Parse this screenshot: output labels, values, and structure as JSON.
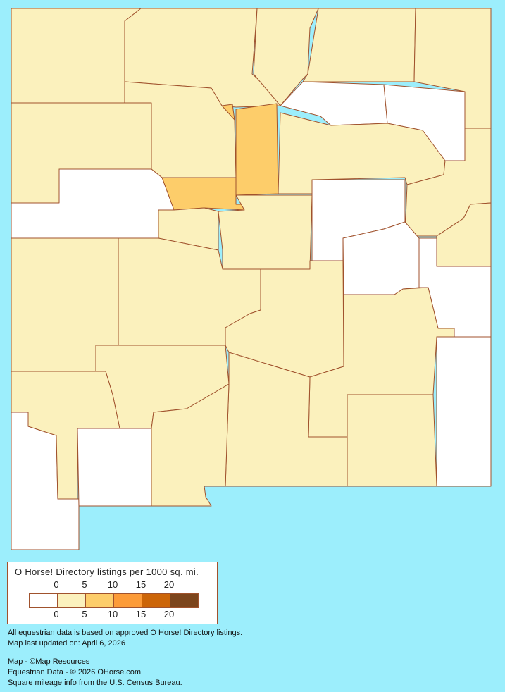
{
  "legend": {
    "title": "O Horse! Directory listings per 1000 sq. mi.",
    "ticks_top": [
      "0",
      "5",
      "10",
      "15",
      "20"
    ],
    "ticks_bottom": [
      "0",
      "5",
      "10",
      "15",
      "20"
    ],
    "colors": [
      "#FFFFFF",
      "#FBF1BD",
      "#FDCD6A",
      "#FC9B38",
      "#CC6508",
      "#7C451C"
    ]
  },
  "map": {
    "background": "#9CEEFC",
    "county_fill_levels": [
      1,
      1,
      1,
      2,
      2,
      2,
      1,
      1,
      1,
      0,
      0,
      1,
      1,
      1,
      0,
      1,
      1,
      0,
      0,
      1,
      1,
      1,
      1,
      1,
      0,
      0,
      1,
      1,
      1,
      0
    ]
  },
  "notes": {
    "data_basis": "All equestrian data is based on approved O Horse! Directory listings.",
    "updated": "Map last updated on: April 6, 2026",
    "map_credit": "Map - ©Map Resources",
    "data_credit": "Equestrian Data - © 2026 OHorse.com",
    "census_credit": "Square mileage info from the U.S. Census Bureau."
  }
}
